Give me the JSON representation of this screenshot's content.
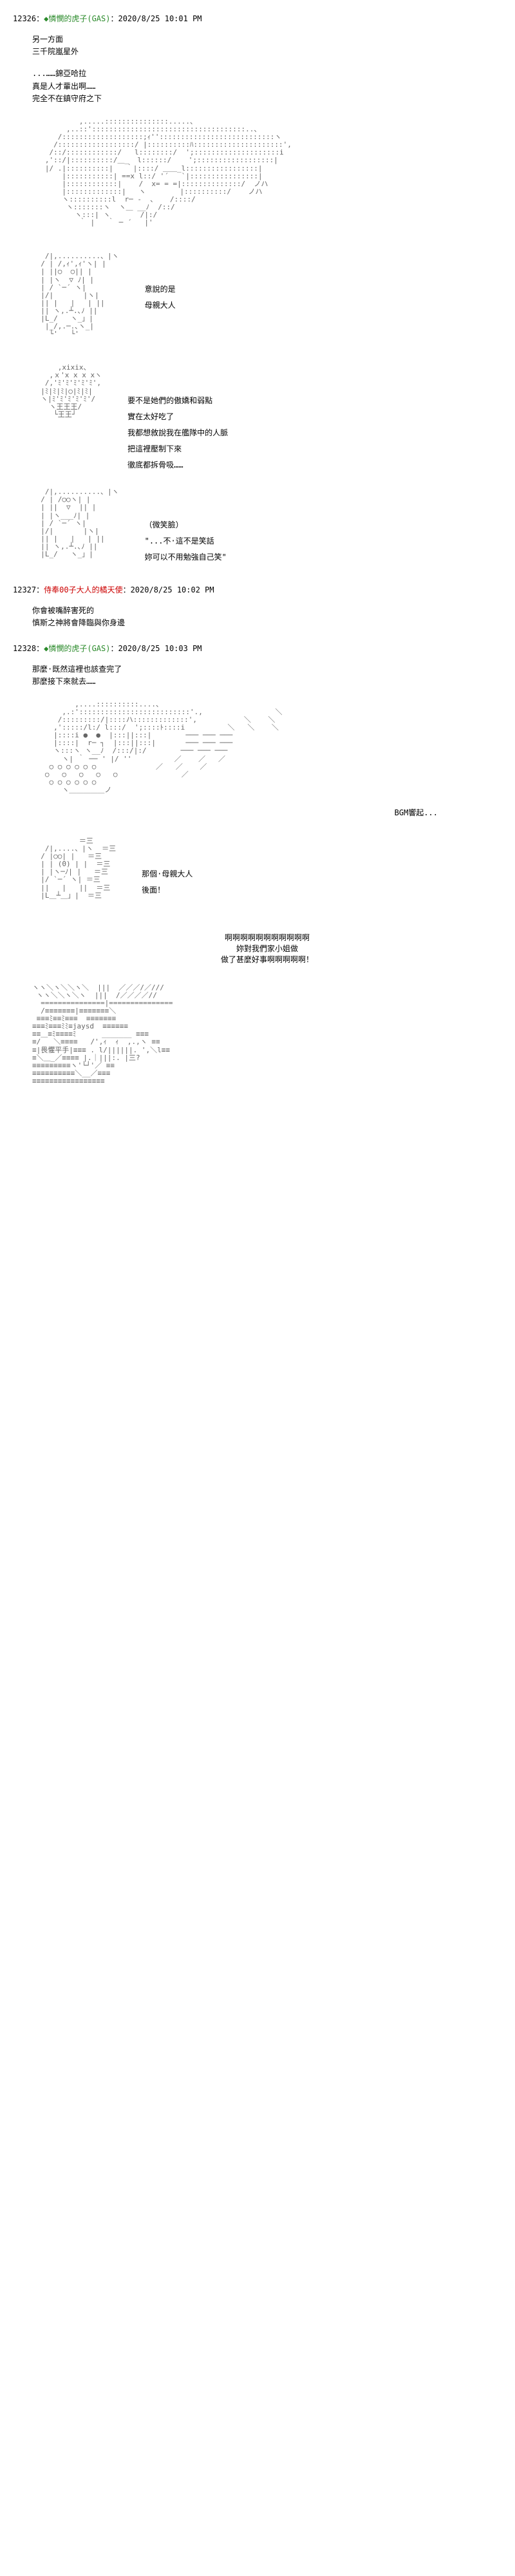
{
  "posts": [
    {
      "id": "12326",
      "author": "◆憐憫的虎子(GAS)",
      "author_color": "green",
      "timestamp": "2020/8/25 10:01 PM",
      "intro_lines": [
        "另一方面",
        "三千院嵐星外"
      ],
      "sections": [
        {
          "type": "text",
          "lines": [
            "...……錦亞哈拉",
            "真是人才輩出啊……",
            "完全不在鎮守府之下"
          ]
        },
        {
          "type": "ascii",
          "content": "           ,.....:::::::::::::::.....、\n        ,..::'::::::::::::::::::::::::::::::::::::..、\n      /:::::::::::::::::::;ｨ'':::::::::::::::::::::::::::ヽ\n     /::::::::::::::::::/ |::::::::::ﾊ:::::::::::::::::::::',\n    /::/::::::::::::/   l::::::::/  ';::::::::::::::::::::i\n   ,'::/|::::::::::/＿_  l::::::/    ';::::::::::::::::::|\n   |/ .|::::::::::|   ｀|::::/ ＿＿_l:::::::::::::::::|\n       |:::::::::::| ==x l::/ '´   `|::::::::::::::::|\n       |::::::::::::|    /  x= = =|::::::::::::::/  ノハ\n       |:::::::::::::|   ヽ        |::::::::::/    ノハ\n       ヽ::::::::::l  r─ ‐  、   /::::/\n        ヽ:::::::ヽ  ヽ＿ __ﾉ  /::/\n          ヽ:::| ヽ       /|:/\n           ｀ |   ｀ ─ ´   |'"
        },
        {
          "type": "side",
          "dialogue": [
            "意說的是",
            "母親大人"
          ],
          "ascii": "   /|,..........、|ヽ\n  / | /,ｨ',ｨ'ヽ| |\n  | ||○  ○|| |\n  | |ヽ  ▽ ﾉ| |\n  | / `─´ ヽ|\n  |/|       |ヽ|\n  || |   |   | ||\n  || ヽ,.┴.､ﾉ ||\n  |L_/   ヽ_」|\n   |_/,.─.､ヽ_|\n    └'   └'"
        },
        {
          "type": "side",
          "dialogue": [
            "要不是她們的傲嬌和弱點",
            "實在太好吃了",
            "我都想敘說我在艦隊中的人脈",
            "把這裡壓制下來",
            "徹底都拆骨吸……"
          ],
          "ascii": "      ,xixix、\n    ,ｘ'x x x xヽ\n   /,'ﾐ'ﾐ'ﾐ'ﾐ'ﾐ',\n  |ﾐ|ﾐ|ﾐ|○|ﾐ|ﾐ|\n  ヽ|ﾐ'ﾐ'ﾐ'ﾐ'ﾐ'/\n    ヽ王王王/\n     └王王┘"
        },
        {
          "type": "side",
          "dialogue": [
            "（微笑臉）",
            "",
            "\"...不·這不是笑話",
            "妳可以不用勉強自己笑\""
          ],
          "ascii": "   /|,..........、|ヽ\n  / | /○○ヽ| |\n  | ||  ▽  || |\n  | |ヽ___ﾉ| |\n  | / `─´ ヽ|\n  |/|       |ヽ|\n  || |   |   | ||\n  || ヽ,.┴.､ﾉ ||\n  |L_/   ヽ_」|"
        }
      ]
    },
    {
      "id": "12327",
      "author": "侍奉00子大人的橘天使",
      "author_color": "red",
      "timestamp": "2020/8/25 10:02 PM",
      "sections": [
        {
          "type": "text",
          "lines": [
            "你會被嘴醉害死的",
            "慎斯之神將會降臨與你身邊"
          ]
        }
      ]
    },
    {
      "id": "12328",
      "author": "◆憐憫的虎子(GAS)",
      "author_color": "green",
      "timestamp": "2020/8/25 10:03 PM",
      "sections": [
        {
          "type": "text",
          "lines": [
            "那麼·既然這裡也該查完了",
            "那麼接下來就去……"
          ]
        },
        {
          "type": "ascii",
          "content": "          ,....::::::::::....、\n       ,.:'::::::::::::::::::::::::::'.,                 ＼\n      /:::::::::/|::::ハ:::::::::::::',           ＼    ＼\n     ,':::::/l:/ l:::/  ';::::ﾄ::::i          ＼   ＼    ＼\n     |::::i ●  ●  |:::||:::|        ─── ─── ───\n     |::::|  r─ ┐  |:::||:::|       ─── ─── ───\n     ヽ:::ヽ ヽ__ﾉ  /:::/|:/        ─── ─── ───\n       ヽ| ｀ ── ' |/ ''          ／    ／   ／\n    ○ ○ ○ ○ ○ ○              ／   ／    ／\n   ○   ○   ○   ○   ○               ／\n    ○ ○ ○ ○ ○ ○\n       ヽ＿＿＿＿＿ノ"
        },
        {
          "type": "right",
          "text": "BGM響起..."
        },
        {
          "type": "side",
          "dialogue": [
            "那個·母親大人",
            "後面！"
          ],
          "ascii": "           ＝三\n   /|,....、|ヽ  ＝三\n  / |○○| |   ＝三\n  | | (0) | |  ＝三\n  | |ヽ─ﾉ| |   ＝三\n  |/ `─´ ヽ| ＝三\n  ||   |   ||  ＝三\n  |L＿┴＿」|  ＝三"
        },
        {
          "type": "center",
          "lines": [
            "啊啊啊啊啊啊啊啊啊啊啊",
            "妳對我們家小姐做",
            "做了甚麼好事啊啊啊啊啊！"
          ]
        },
        {
          "type": "ascii",
          "content": "ヽヽ＼ヽ＼＼ヽ＼  |||  ／／／/／///\n ヽヽ＼＼ヽ＼ヽ  |||  /／／／／//\n  ===============|=============== \n  /≡≡≡≡≡≡≡|≡≡≡≡≡≡≡＼\n ≡≡≡ﾐ≡≡ﾐ≡≡≡  ≡≡≡≡≡≡≡\n≡≡≡ﾐ≡≡≡ﾐﾐ≡jaysd  ≡≡≡≡≡≡\n≡≡＿≡ﾐ≡≡≡≡ﾐ      _______ ≡≡≡\n≡/   ＼≡≡≡≡   /',ｨ  ｨ  ,.,ヽ ≡≡\n≡|畏懼平手|≡≡≡ . l/||||||. ',＼l≡≡\n≡＼＿_／≡≡≡≡ |.｜|||:. |三?\n≡≡≡≡≡≡≡≡≡ヽ'└┘'／ ≡≡\n≡≡≡≡≡≡≡≡≡≡＼__／≡≡≡\n≡≡≡≡≡≡≡≡≡≡≡≡≡≡≡≡≡"
        }
      ]
    }
  ]
}
